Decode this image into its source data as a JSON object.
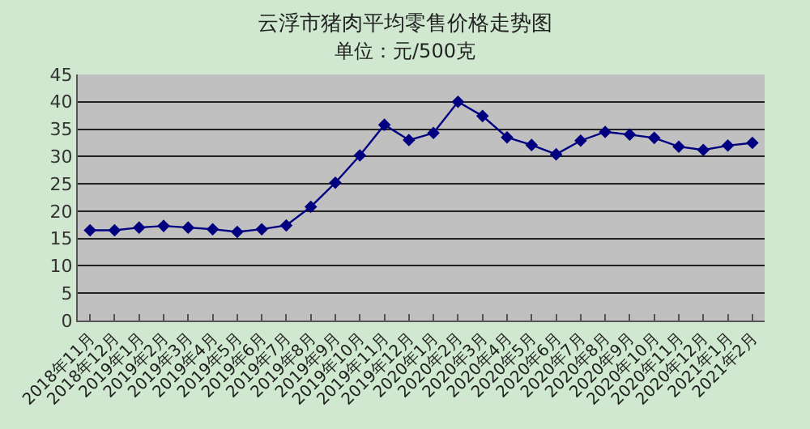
{
  "chart_data": {
    "type": "line",
    "title": "云浮市猪肉平均零售价格走势图",
    "subtitle": "单位：元/500克",
    "categories": [
      "2018年11月",
      "2018年12月",
      "2019年1月",
      "2019年2月",
      "2019年3月",
      "2019年4月",
      "2019年5月",
      "2019年6月",
      "2019年7月",
      "2019年8月",
      "2019年9月",
      "2019年10月",
      "2019年11月",
      "2019年12月",
      "2020年1月",
      "2020年2月",
      "2020年3月",
      "2020年4月",
      "2020年5月",
      "2020年6月",
      "2020年7月",
      "2020年8月",
      "2020年9月",
      "2020年10月",
      "2020年11月",
      "2020年12月",
      "2021年1月",
      "2021年2月"
    ],
    "series": [
      {
        "color": "#000080",
        "values": [
          16.5,
          16.5,
          17,
          17.3,
          17,
          16.7,
          16.2,
          16.7,
          17.4,
          20.8,
          25.2,
          30.2,
          35.8,
          33,
          34.3,
          40,
          37.4,
          33.5,
          32.1,
          30.4,
          32.9,
          34.5,
          34,
          33.4,
          31.8,
          31.2,
          32,
          32.5
        ]
      }
    ],
    "ylim": [
      0,
      45
    ],
    "yticks": [
      0,
      5,
      10,
      15,
      20,
      25,
      30,
      35,
      40,
      45
    ],
    "grid": "y",
    "marker": "diamond",
    "line_style": "solid",
    "legend": false
  }
}
